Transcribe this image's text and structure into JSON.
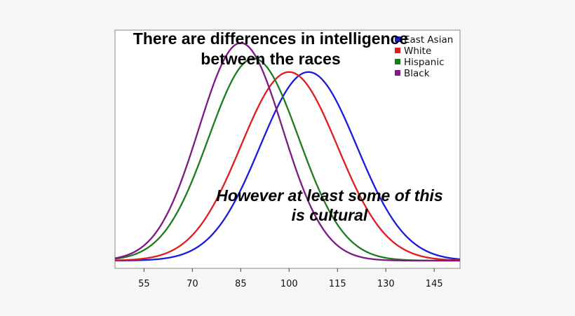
{
  "chart_data": {
    "type": "line",
    "title": "There are differences in intelligence between the races",
    "title_lines": [
      "There are differences in intelligence",
      "between the races"
    ],
    "annotation_lines": [
      "However at least some of this",
      "is cultural"
    ],
    "xlabel": "",
    "ylabel": "",
    "xlim": [
      46,
      153
    ],
    "ylim": [
      0,
      0.0325
    ],
    "x_ticks": [
      55,
      70,
      85,
      100,
      115,
      130,
      145
    ],
    "grid": false,
    "legend_position": "top-right",
    "series": [
      {
        "name": "East Asian",
        "color": "#1a1adf",
        "mean": 106,
        "sd": 15
      },
      {
        "name": "White",
        "color": "#e01c1c",
        "mean": 100,
        "sd": 15
      },
      {
        "name": "Hispanic",
        "color": "#1c7c1c",
        "mean": 89,
        "sd": 14
      },
      {
        "name": "Black",
        "color": "#7a1a82",
        "mean": 85,
        "sd": 13
      }
    ]
  }
}
